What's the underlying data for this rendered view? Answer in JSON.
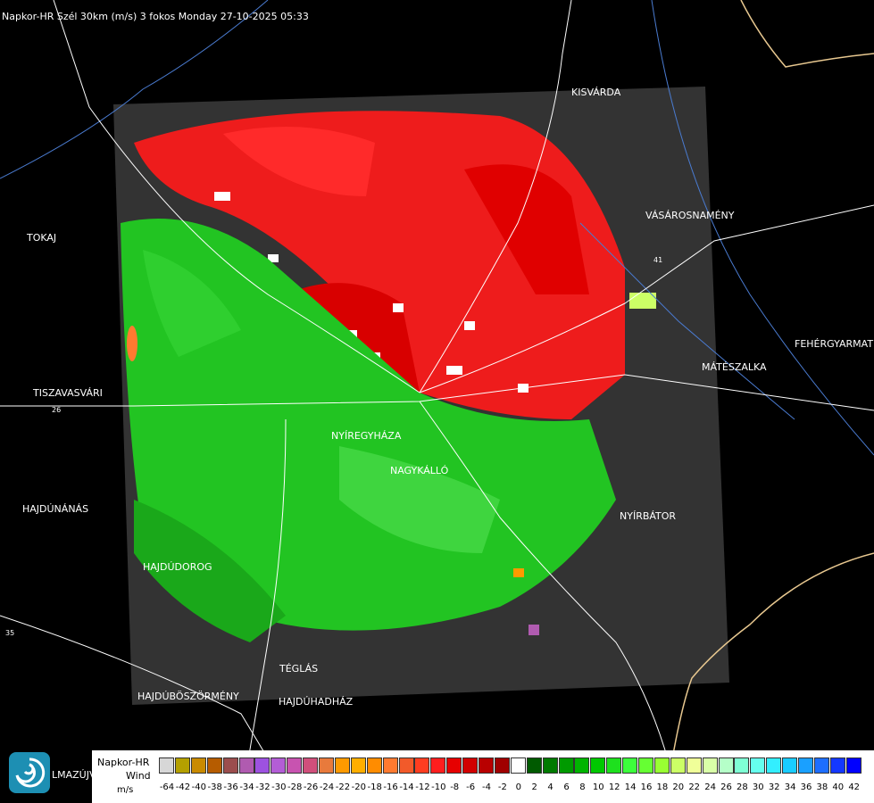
{
  "header": {
    "title": "Napkor-HR Szél 30km (m/s) 3 fokos Monday 27-10-2025 05:33"
  },
  "places": [
    {
      "name": "KISVÁRDA"
    },
    {
      "name": "TOKAJ"
    },
    {
      "name": "VÁSÁROSNAMÉNY"
    },
    {
      "name": "FEHÉRGYARMAT"
    },
    {
      "name": "MÁTÉSZALKA"
    },
    {
      "name": "TISZAVASVÁRI"
    },
    {
      "name": "NYÍREGYHÁZA"
    },
    {
      "name": "NAGYKÁLLÓ"
    },
    {
      "name": "HAJDÚNÁNÁS"
    },
    {
      "name": "NYÍRBÁTOR"
    },
    {
      "name": "HAJDÚDOROG"
    },
    {
      "name": "TÉGLÁS"
    },
    {
      "name": "HAJDÚBÖSZÖRMÉNY"
    },
    {
      "name": "HAJDÚHADHÁZ"
    }
  ],
  "roads": [
    "26",
    "41",
    "35"
  ],
  "legend": {
    "product": "Napkor-HR",
    "quantity": "Wind",
    "unit": "m/s",
    "ticks": [
      "-64",
      "-42",
      "-40",
      "-38",
      "-36",
      "-34",
      "-32",
      "-30",
      "-28",
      "-26",
      "-24",
      "-22",
      "-20",
      "-18",
      "-16",
      "-14",
      "-12",
      "-10",
      "-8",
      "-6",
      "-4",
      "-2",
      "0",
      "2",
      "4",
      "6",
      "8",
      "10",
      "12",
      "14",
      "16",
      "18",
      "20",
      "22",
      "24",
      "26",
      "28",
      "30",
      "32",
      "34",
      "36",
      "38",
      "40",
      "42"
    ],
    "colors": [
      "#d7d7d7",
      "#b4a000",
      "#c98a00",
      "#b65c00",
      "#9b4d4d",
      "#b05bb0",
      "#9d52e0",
      "#b35dd6",
      "#c853b0",
      "#d04f7b",
      "#e87a3c",
      "#ff9a00",
      "#ffae00",
      "#ff8c00",
      "#ff7a30",
      "#f25a2a",
      "#ff3d20",
      "#ff1e1e",
      "#e60000",
      "#d10000",
      "#b80000",
      "#a00000",
      "#ffffff",
      "#005a00",
      "#007a00",
      "#009a00",
      "#00b400",
      "#00c800",
      "#1ee01e",
      "#3cff3c",
      "#66ff33",
      "#99ff33",
      "#ccff66",
      "#f0ff99",
      "#d9ffa8",
      "#b5ffc8",
      "#7fffd4",
      "#66ffee",
      "#33eeff",
      "#19ccff",
      "#1aa0ff",
      "#1e6eff",
      "#1438ff",
      "#0000ff"
    ]
  },
  "logo": {
    "caption": "LMAZÚJVÁR"
  }
}
